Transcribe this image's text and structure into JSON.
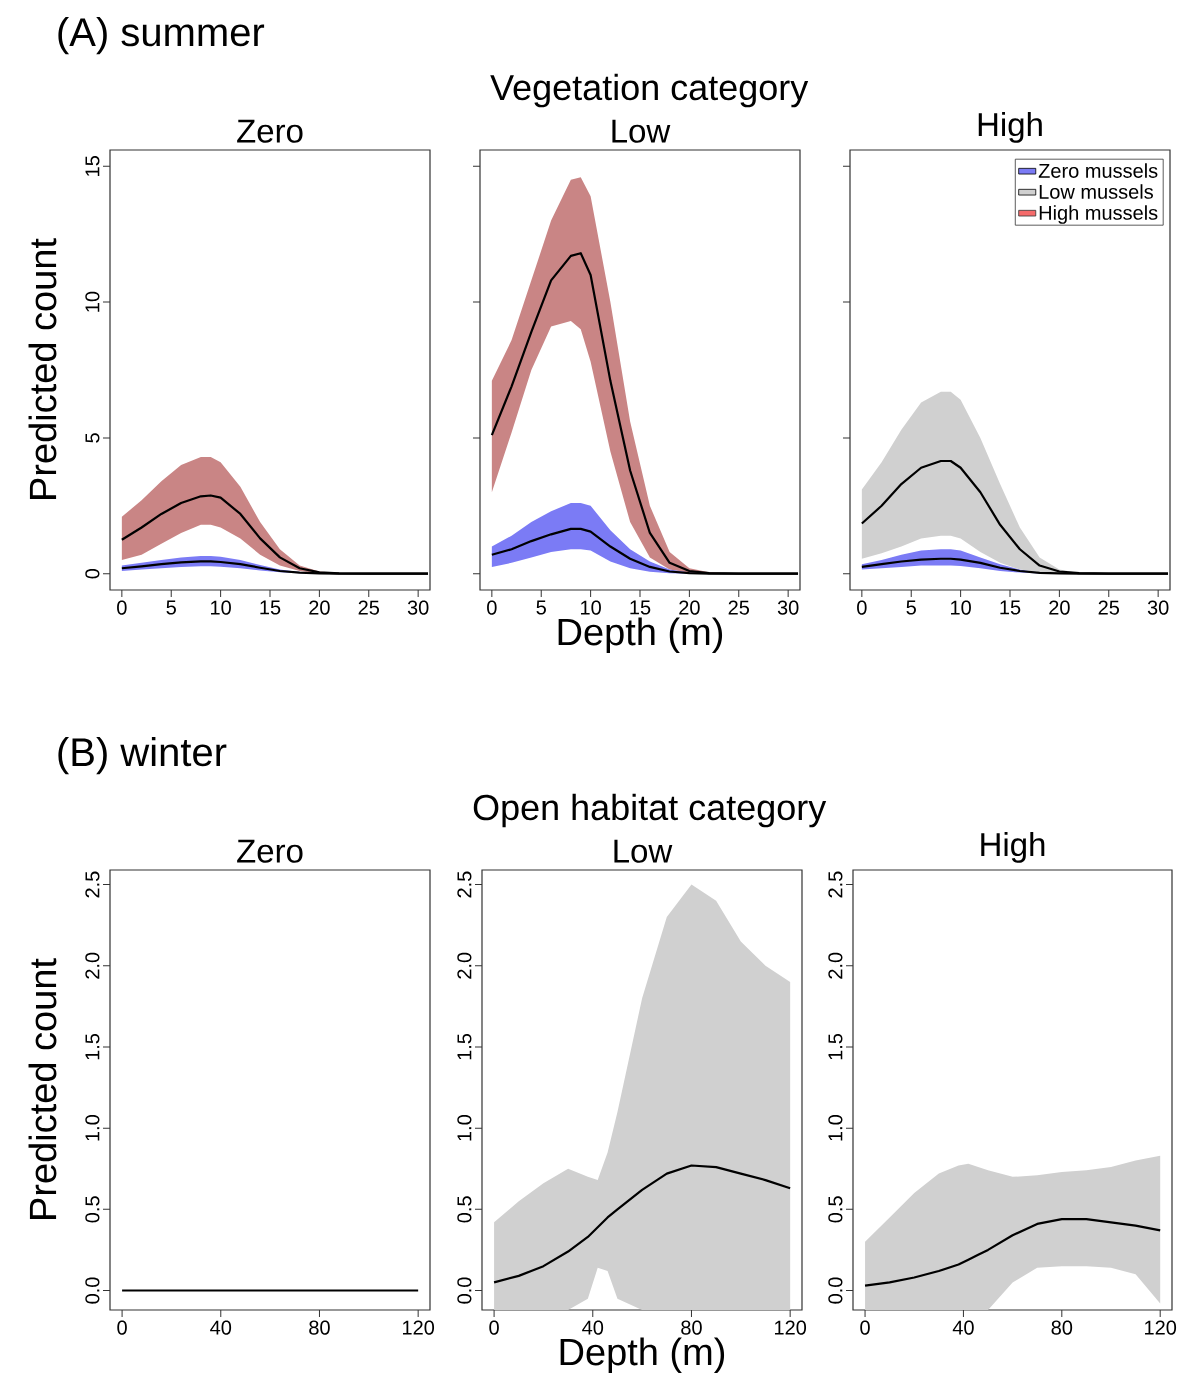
{
  "chart_data": [
    {
      "type": "line",
      "title": "Zero",
      "ylabel": "Predicted count",
      "annotations": [
        "(A) summer",
        "Vegetation category"
      ],
      "xlim": [
        -1.2,
        31.2
      ],
      "ylim": [
        -0.6,
        15.6
      ],
      "xticks": [
        0,
        5,
        10,
        15,
        20,
        25,
        30
      ],
      "yticks": [
        0,
        5,
        10,
        15
      ],
      "x": [
        0,
        2,
        4,
        6,
        8,
        9,
        10,
        12,
        14,
        16,
        18,
        20,
        22,
        25,
        28,
        31
      ],
      "series": [
        {
          "type": "area",
          "color": "#c98585",
          "values": [
            null,
            null,
            null,
            null,
            null,
            null,
            null,
            null,
            null,
            null,
            null,
            null,
            null,
            null,
            null,
            null
          ],
          "upper": [
            2.1,
            2.7,
            3.4,
            4.0,
            4.3,
            4.3,
            4.1,
            3.2,
            1.9,
            0.9,
            0.3,
            0.08,
            0.02,
            0,
            0,
            0
          ],
          "lower": [
            0.5,
            0.7,
            1.1,
            1.5,
            1.8,
            1.8,
            1.7,
            1.3,
            0.7,
            0.3,
            0.1,
            0.02,
            0,
            0,
            0,
            0
          ]
        },
        {
          "type": "area",
          "color": "#7b7bf5",
          "values": [
            null,
            null,
            null,
            null,
            null,
            null,
            null,
            null,
            null,
            null,
            null,
            null,
            null,
            null,
            null,
            null
          ],
          "upper": [
            0.3,
            0.4,
            0.5,
            0.6,
            0.65,
            0.65,
            0.62,
            0.5,
            0.32,
            0.15,
            0.06,
            0.02,
            0,
            0,
            0,
            0
          ],
          "lower": [
            0.1,
            0.15,
            0.2,
            0.25,
            0.27,
            0.27,
            0.26,
            0.2,
            0.12,
            0.05,
            0.02,
            0,
            0,
            0,
            0,
            0
          ]
        },
        {
          "type": "line",
          "color": "#000000",
          "values": [
            0.2,
            0.27,
            0.35,
            0.42,
            0.45,
            0.45,
            0.43,
            0.35,
            0.22,
            0.1,
            0.04,
            0.01,
            0,
            0,
            0,
            0
          ]
        },
        {
          "type": "line",
          "color": "#000000",
          "values": [
            1.25,
            1.7,
            2.2,
            2.6,
            2.85,
            2.88,
            2.8,
            2.2,
            1.3,
            0.6,
            0.2,
            0.05,
            0.01,
            0,
            0,
            0
          ]
        }
      ]
    },
    {
      "type": "line",
      "title": "Low",
      "xlabel": "Depth (m)",
      "tick_labels": "x",
      "xlim": [
        -1.2,
        31.2
      ],
      "ylim": [
        -0.6,
        15.6
      ],
      "xticks": [
        0,
        5,
        10,
        15,
        20,
        25,
        30
      ],
      "yticks": [
        0,
        5,
        10,
        15
      ],
      "x": [
        0,
        2,
        4,
        6,
        8,
        9,
        10,
        12,
        14,
        16,
        18,
        20,
        22,
        25,
        28,
        31
      ],
      "series": [
        {
          "type": "area",
          "color": "#c98585",
          "values": [
            null,
            null,
            null,
            null,
            null,
            null,
            null,
            null,
            null,
            null,
            null,
            null,
            null,
            null,
            null,
            null
          ],
          "upper": [
            7.1,
            8.6,
            10.8,
            13.0,
            14.5,
            14.6,
            13.9,
            10.0,
            5.6,
            2.5,
            0.8,
            0.2,
            0.05,
            0,
            0,
            0
          ],
          "lower": [
            3.0,
            5.2,
            7.5,
            9.1,
            9.3,
            9.0,
            7.8,
            4.5,
            1.9,
            0.6,
            0.15,
            0.03,
            0,
            0,
            0,
            0
          ]
        },
        {
          "type": "area",
          "color": "#7b7bf5",
          "values": [
            null,
            null,
            null,
            null,
            null,
            null,
            null,
            null,
            null,
            null,
            null,
            null,
            null,
            null,
            null,
            null
          ],
          "upper": [
            1.0,
            1.4,
            1.9,
            2.3,
            2.6,
            2.6,
            2.5,
            1.6,
            0.9,
            0.45,
            0.15,
            0.04,
            0.01,
            0,
            0,
            0
          ],
          "lower": [
            0.25,
            0.4,
            0.6,
            0.8,
            0.9,
            0.9,
            0.85,
            0.45,
            0.2,
            0.07,
            0.02,
            0,
            0,
            0,
            0,
            0
          ]
        },
        {
          "type": "line",
          "color": "#000000",
          "values": [
            0.7,
            0.9,
            1.2,
            1.45,
            1.65,
            1.65,
            1.55,
            1.0,
            0.55,
            0.25,
            0.08,
            0.02,
            0,
            0,
            0,
            0
          ]
        },
        {
          "type": "line",
          "color": "#000000",
          "values": [
            5.1,
            6.9,
            8.9,
            10.8,
            11.7,
            11.8,
            11.0,
            7.1,
            3.8,
            1.5,
            0.4,
            0.1,
            0.02,
            0,
            0,
            0
          ]
        }
      ]
    },
    {
      "type": "line",
      "title": "High",
      "tick_labels": "x",
      "legend": "top right",
      "xlim": [
        -1.2,
        31.2
      ],
      "ylim": [
        -0.6,
        15.6
      ],
      "xticks": [
        0,
        5,
        10,
        15,
        20,
        25,
        30
      ],
      "yticks": [
        0,
        5,
        10,
        15
      ],
      "x": [
        0,
        2,
        4,
        6,
        8,
        9,
        10,
        12,
        14,
        16,
        18,
        20,
        22,
        25,
        28,
        31
      ],
      "series": [
        {
          "type": "area",
          "name": "Zero mussels",
          "color": "#7b7bf5",
          "values": [
            null,
            null,
            null,
            null,
            null,
            null,
            null,
            null,
            null,
            null,
            null,
            null,
            null,
            null,
            null,
            null
          ],
          "upper": [
            0.35,
            0.5,
            0.7,
            0.85,
            0.9,
            0.9,
            0.85,
            0.6,
            0.35,
            0.15,
            0.05,
            0.01,
            0,
            0,
            0,
            0
          ],
          "lower": [
            0.15,
            0.2,
            0.25,
            0.3,
            0.3,
            0.3,
            0.28,
            0.2,
            0.1,
            0.04,
            0.01,
            0,
            0,
            0,
            0,
            0
          ]
        },
        {
          "type": "area",
          "name": "Low mussels",
          "color": "#d0d0d0",
          "values": [
            null,
            null,
            null,
            null,
            null,
            null,
            null,
            null,
            null,
            null,
            null,
            null,
            null,
            null,
            null,
            null
          ],
          "upper": [
            3.1,
            4.1,
            5.3,
            6.3,
            6.7,
            6.7,
            6.4,
            5.0,
            3.3,
            1.7,
            0.6,
            0.15,
            0.03,
            0,
            0,
            0
          ],
          "lower": [
            0.55,
            0.75,
            1.0,
            1.3,
            1.4,
            1.4,
            1.3,
            0.8,
            0.4,
            0.15,
            0.05,
            0.01,
            0,
            0,
            0,
            0
          ]
        },
        {
          "type": "area",
          "name": "High mussels",
          "color": "#f56b6b",
          "values": [
            null,
            null,
            null,
            null,
            null,
            null,
            null,
            null,
            null,
            null,
            null,
            null,
            null,
            null,
            null,
            null
          ]
        },
        {
          "type": "line",
          "color": "#000000",
          "values": [
            0.25,
            0.35,
            0.45,
            0.52,
            0.55,
            0.55,
            0.52,
            0.4,
            0.22,
            0.1,
            0.03,
            0.01,
            0,
            0,
            0,
            0
          ]
        },
        {
          "type": "line",
          "color": "#000000",
          "values": [
            1.85,
            2.5,
            3.3,
            3.9,
            4.15,
            4.15,
            3.9,
            3.0,
            1.8,
            0.9,
            0.3,
            0.08,
            0.02,
            0,
            0,
            0
          ]
        }
      ]
    },
    {
      "type": "line",
      "title": "Zero",
      "ylabel": "Predicted count",
      "annotations": [
        "(B) winter",
        "Open habitat category"
      ],
      "xlim": [
        -4.9,
        124.8
      ],
      "ylim": [
        -0.12,
        2.59
      ],
      "xticks": [
        0,
        40,
        80,
        120
      ],
      "yticks": [
        {
          "value": 0,
          "label": "0.0"
        },
        {
          "value": 0.5,
          "label": "0.5"
        },
        {
          "value": 1,
          "label": "1.0"
        },
        {
          "value": 1.5,
          "label": "1.5"
        },
        {
          "value": 2,
          "label": "2.0"
        },
        {
          "value": 2.5,
          "label": "2.5"
        }
      ],
      "x": [
        0,
        10,
        20,
        30,
        38,
        42,
        46,
        50,
        60,
        70,
        80,
        90,
        100,
        110,
        120
      ],
      "series": [
        {
          "type": "line",
          "color": "#000000",
          "values": [
            0,
            0,
            0,
            0,
            0,
            0,
            0,
            0,
            0,
            0,
            0,
            0,
            0,
            0,
            0
          ]
        }
      ]
    },
    {
      "type": "line",
      "title": "Low",
      "xlabel": "Depth (m)",
      "xlim": [
        -4.9,
        124.8
      ],
      "ylim": [
        -0.12,
        2.59
      ],
      "xticks": [
        0,
        40,
        80,
        120
      ],
      "yticks": [
        {
          "value": 0,
          "label": "0.0"
        },
        {
          "value": 0.5,
          "label": "0.5"
        },
        {
          "value": 1,
          "label": "1.0"
        },
        {
          "value": 1.5,
          "label": "1.5"
        },
        {
          "value": 2,
          "label": "2.0"
        },
        {
          "value": 2.5,
          "label": "2.5"
        }
      ],
      "x": [
        0,
        10,
        20,
        30,
        38,
        42,
        46,
        50,
        60,
        70,
        80,
        90,
        100,
        110,
        120
      ],
      "series": [
        {
          "type": "area",
          "color": "#d0d0d0",
          "values": [
            null,
            null,
            null,
            null,
            null,
            null,
            null,
            null,
            null,
            null,
            null,
            null,
            null,
            null,
            null
          ],
          "upper": [
            0.42,
            0.55,
            0.66,
            0.75,
            0.7,
            0.68,
            0.85,
            1.1,
            1.8,
            2.3,
            2.5,
            2.4,
            2.15,
            2.0,
            1.9
          ],
          "lower": [
            -0.12,
            -0.12,
            -0.12,
            -0.12,
            -0.05,
            0.14,
            0.12,
            -0.05,
            -0.12,
            -0.12,
            -0.12,
            -0.12,
            -0.12,
            -0.12,
            -0.12
          ]
        },
        {
          "type": "line",
          "color": "#000000",
          "values": [
            0.05,
            0.09,
            0.15,
            0.24,
            0.33,
            0.39,
            0.45,
            0.5,
            0.62,
            0.72,
            0.77,
            0.76,
            0.72,
            0.68,
            0.63
          ]
        }
      ]
    },
    {
      "type": "line",
      "title": "High",
      "xlim": [
        -4.9,
        124.8
      ],
      "ylim": [
        -0.12,
        2.59
      ],
      "xticks": [
        0,
        40,
        80,
        120
      ],
      "yticks": [
        {
          "value": 0,
          "label": "0.0"
        },
        {
          "value": 0.5,
          "label": "0.5"
        },
        {
          "value": 1,
          "label": "1.0"
        },
        {
          "value": 1.5,
          "label": "1.5"
        },
        {
          "value": 2,
          "label": "2.0"
        },
        {
          "value": 2.5,
          "label": "2.5"
        }
      ],
      "x": [
        0,
        10,
        20,
        30,
        38,
        42,
        46,
        50,
        60,
        70,
        80,
        90,
        100,
        110,
        120
      ],
      "series": [
        {
          "type": "area",
          "color": "#d0d0d0",
          "values": [
            null,
            null,
            null,
            null,
            null,
            null,
            null,
            null,
            null,
            null,
            null,
            null,
            null,
            null,
            null
          ],
          "upper": [
            0.3,
            0.45,
            0.6,
            0.72,
            0.77,
            0.78,
            0.76,
            0.74,
            0.7,
            0.71,
            0.73,
            0.74,
            0.76,
            0.8,
            0.83
          ],
          "lower": [
            -0.12,
            -0.12,
            -0.12,
            -0.12,
            -0.12,
            -0.12,
            -0.12,
            -0.12,
            0.05,
            0.14,
            0.15,
            0.15,
            0.14,
            0.1,
            -0.08
          ]
        },
        {
          "type": "line",
          "color": "#000000",
          "values": [
            0.03,
            0.05,
            0.08,
            0.12,
            0.16,
            0.19,
            0.22,
            0.25,
            0.34,
            0.41,
            0.44,
            0.44,
            0.42,
            0.4,
            0.37
          ]
        }
      ]
    }
  ]
}
